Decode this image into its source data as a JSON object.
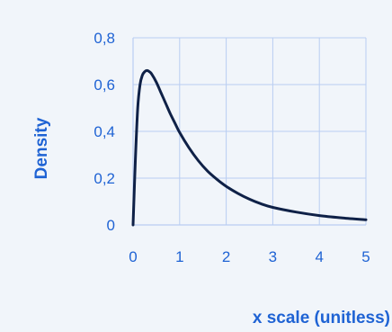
{
  "chart_data": {
    "type": "line",
    "title": "",
    "xlabel": "x scale (unitless)",
    "ylabel": "Density",
    "xlim": [
      0,
      5
    ],
    "ylim": [
      0,
      0.8
    ],
    "x_ticks": [
      0,
      1,
      2,
      3,
      4,
      5
    ],
    "x_tick_labels": [
      "0",
      "1",
      "2",
      "3",
      "4",
      "5"
    ],
    "y_ticks": [
      0,
      0.2,
      0.4,
      0.6,
      0.8
    ],
    "y_tick_labels": [
      "0",
      "0,2",
      "0,4",
      "0,6",
      "0,8"
    ],
    "grid": true,
    "series": [
      {
        "color": "#0f2147",
        "x": [
          0,
          0.05,
          0.1,
          0.15,
          0.2,
          0.25,
          0.3,
          0.35,
          0.4,
          0.5,
          0.6,
          0.7,
          0.8,
          0.9,
          1.0,
          1.2,
          1.4,
          1.6,
          1.8,
          2.0,
          2.25,
          2.5,
          2.75,
          3.0,
          3.5,
          4.0,
          4.5,
          5.0
        ],
        "y": [
          0,
          0.28,
          0.5,
          0.6,
          0.64,
          0.655,
          0.66,
          0.655,
          0.645,
          0.61,
          0.565,
          0.52,
          0.475,
          0.435,
          0.395,
          0.33,
          0.275,
          0.23,
          0.195,
          0.165,
          0.135,
          0.11,
          0.09,
          0.075,
          0.055,
          0.04,
          0.03,
          0.022
        ]
      }
    ],
    "colors": {
      "text": "#1f63d4",
      "grid": "#b9cdf2",
      "line": "#0f2147",
      "background": "#f1f5fa"
    }
  }
}
